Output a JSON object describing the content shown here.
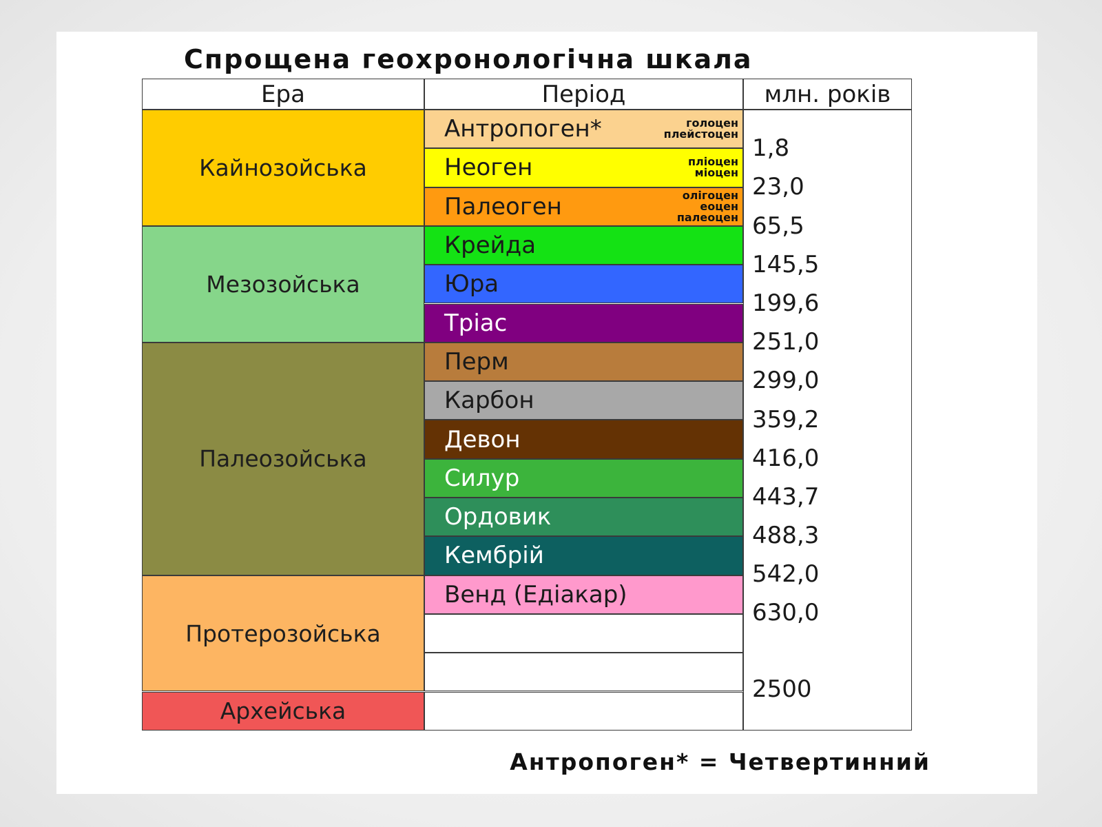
{
  "title": "Спрощена геохронологічна шкала",
  "headers": {
    "era": "Ера",
    "period": "Період",
    "age": "млн. років"
  },
  "eras": [
    {
      "name": "Кайнозойська",
      "color": "#ffcc00"
    },
    {
      "name": "Мезозойська",
      "color": "#86d68a"
    },
    {
      "name": "Палеозойська",
      "color": "#8b8b44"
    },
    {
      "name": "Протерозойська",
      "color": "#fdb562"
    },
    {
      "name": "Архейська",
      "color": "#f05656"
    }
  ],
  "periods": [
    {
      "name": "Антропоген*",
      "color": "#fbd28f",
      "text_color": "#1a1a1a",
      "epochs": [
        "голоцен",
        "плейстоцен"
      ]
    },
    {
      "name": "Неоген",
      "color": "#ffff00",
      "text_color": "#1a1a1a",
      "epochs": [
        "пліоцен",
        "міоцен"
      ]
    },
    {
      "name": "Палеоген",
      "color": "#ff9a10",
      "text_color": "#1a1a1a",
      "epochs": [
        "олігоцен",
        "еоцен",
        "палеоцен"
      ]
    },
    {
      "name": "Крейда",
      "color": "#14e214",
      "text_color": "#1a1a1a",
      "epochs": []
    },
    {
      "name": "Юра",
      "color": "#3366ff",
      "text_color": "#1a1a1a",
      "epochs": []
    },
    {
      "name": "Тріас",
      "color": "#800080",
      "text_color": "#ffffff",
      "epochs": []
    },
    {
      "name": "Перм",
      "color": "#b87c3c",
      "text_color": "#1a1a1a",
      "epochs": []
    },
    {
      "name": "Карбон",
      "color": "#a8a8a8",
      "text_color": "#1a1a1a",
      "epochs": []
    },
    {
      "name": "Девон",
      "color": "#643204",
      "text_color": "#ffffff",
      "epochs": []
    },
    {
      "name": "Силур",
      "color": "#3cb43c",
      "text_color": "#ffffff",
      "epochs": []
    },
    {
      "name": "Ордовик",
      "color": "#2e8f5a",
      "text_color": "#ffffff",
      "epochs": []
    },
    {
      "name": "Кембрій",
      "color": "#0d6060",
      "text_color": "#ffffff",
      "epochs": []
    },
    {
      "name": "Венд (Едіакар)",
      "color": "#ff99cc",
      "text_color": "#1a1a1a",
      "epochs": []
    },
    {
      "name": "",
      "color": "#ffffff",
      "text_color": "#1a1a1a",
      "epochs": []
    },
    {
      "name": "",
      "color": "#ffffff",
      "text_color": "#1a1a1a",
      "epochs": []
    },
    {
      "name": "",
      "color": "#ffffff",
      "text_color": "#1a1a1a",
      "epochs": []
    }
  ],
  "ages": [
    "1,8",
    "23,0",
    "65,5",
    "145,5",
    "199,6",
    "251,0",
    "299,0",
    "359,2",
    "416,0",
    "443,7",
    "488,3",
    "542,0",
    "630,0",
    "2500"
  ],
  "footnote": "Антропоген* = Четвертинний"
}
